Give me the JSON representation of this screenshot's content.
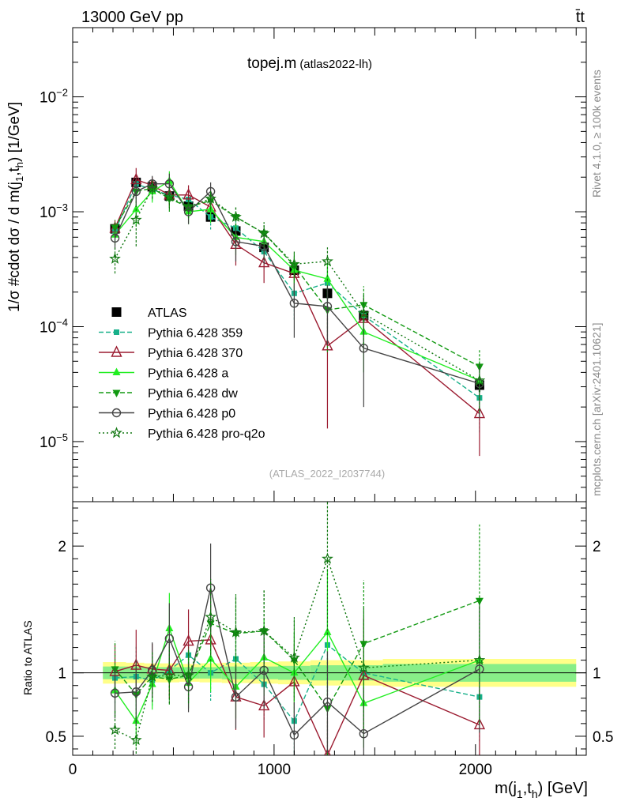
{
  "header": {
    "left": "13000 GeV pp",
    "right": "t̄t"
  },
  "plot_title": {
    "main": "topej.m",
    "sub": "(atlas2022-lh)"
  },
  "side_label_top": "Rivet 4.1.0, ≥ 100k events",
  "side_label_bottom": "mcplots.cern.ch [arXiv:2401.10621]",
  "watermark": "(ATLAS_2022_I2037744)",
  "colors": {
    "atlas": "#000000",
    "p359": "#18b08a",
    "p370": "#9b1b30",
    "pa": "#22ee22",
    "pdw": "#119911",
    "pp0": "#444444",
    "pq2o": "#117711",
    "band_outer": "#ffff88",
    "band_inner": "#88ee88"
  },
  "chart_data": [
    {
      "type": "scatter",
      "panel": "main",
      "ylabel": "1/σ #cdot dσ / d m(j1,th) [1/GeV]",
      "yscale": "log",
      "xlim": [
        0,
        2550
      ],
      "ylim": [
        3e-06,
        0.04
      ],
      "yticks": [
        {
          "v": 1e-05,
          "base": "10",
          "exp": "−5"
        },
        {
          "v": 0.0001,
          "base": "10",
          "exp": "−4"
        },
        {
          "v": 0.001,
          "base": "10",
          "exp": "−3"
        },
        {
          "v": 0.01,
          "base": "10",
          "exp": "−2"
        }
      ],
      "x": [
        210,
        315,
        395,
        480,
        575,
        685,
        810,
        950,
        1100,
        1265,
        1445,
        2020
      ],
      "series": [
        {
          "name": "ATLAS",
          "style": "data",
          "color": "#000000",
          "values": [
            0.00071,
            0.0018,
            0.00165,
            0.00137,
            0.00112,
            0.0009,
            0.00068,
            0.00049,
            0.00031,
            0.000195,
            0.000125,
            3.1e-05
          ],
          "errs": [
            6e-05,
            0.00014,
            0.00012,
            0.0001,
            8e-05,
            7e-05,
            5e-05,
            4e-05,
            2.5e-05,
            2e-05,
            1.5e-05,
            4e-06
          ]
        },
        {
          "name": "Pythia 6.428 359",
          "color": "#18b08a",
          "dash": "6,3",
          "marker": "square",
          "values": [
            0.00068,
            0.00175,
            0.00155,
            0.0014,
            0.00128,
            0.0009,
            0.00072,
            0.00045,
            0.000195,
            0.00024,
            0.000125,
            2.4e-05
          ],
          "errs": [
            0.00012,
            0.0004,
            0.0003,
            0.00025,
            0.00022,
            0.0002,
            0.00018,
            0.00013,
            8e-05,
            9e-05,
            6e-05,
            1.2e-05
          ]
        },
        {
          "name": "Pythia 6.428 370",
          "color": "#9b1b30",
          "dash": "",
          "marker": "triangle-open",
          "values": [
            0.00072,
            0.0019,
            0.0017,
            0.0014,
            0.0014,
            0.0011,
            0.00052,
            0.00036,
            0.00029,
            6.8e-05,
            0.000118,
            1.75e-05
          ],
          "errs": [
            0.00012,
            0.0005,
            0.0003,
            0.0003,
            0.0003,
            0.00025,
            0.00018,
            0.00012,
            0.0001,
            5.5e-05,
            6e-05,
            1e-05
          ]
        },
        {
          "name": "Pythia 6.428 a",
          "color": "#22ee22",
          "dash": "",
          "marker": "triangle",
          "values": [
            0.00063,
            0.00105,
            0.0015,
            0.00185,
            0.001,
            0.00105,
            0.0006,
            0.00055,
            0.00031,
            0.00026,
            9e-05,
            3.4e-05
          ],
          "errs": [
            0.00012,
            0.0003,
            0.0003,
            0.0004,
            0.00022,
            0.00025,
            0.00018,
            0.00016,
            0.0001,
            0.0001,
            5e-05,
            1.6e-05
          ]
        },
        {
          "name": "Pythia 6.428 dw",
          "color": "#119911",
          "dash": "6,3",
          "marker": "triangle-down",
          "values": [
            0.00073,
            0.0015,
            0.0016,
            0.0013,
            0.0011,
            0.00125,
            0.0009,
            0.00065,
            0.00034,
            0.00014,
            0.000155,
            4.5e-05
          ],
          "errs": [
            0.00012,
            0.0004,
            0.0003,
            0.0003,
            0.00022,
            0.00025,
            0.0002,
            0.00016,
            0.0001,
            8e-05,
            7e-05,
            1.8e-05
          ]
        },
        {
          "name": "Pythia 6.428 p0",
          "color": "#444444",
          "dash": "",
          "marker": "circle-open",
          "values": [
            0.00059,
            0.0015,
            0.00175,
            0.00175,
            0.001,
            0.0015,
            0.00055,
            0.0005,
            0.00016,
            0.00015,
            6.5e-05,
            3.2e-05
          ],
          "errs": [
            0.00012,
            0.0004,
            0.0003,
            0.0004,
            0.00022,
            0.0003,
            0.00018,
            0.00015,
            8e-05,
            8e-05,
            4.5e-05,
            1.6e-05
          ]
        },
        {
          "name": "Pythia 6.428 pro-q2o",
          "color": "#117711",
          "dash": "2,3",
          "marker": "star",
          "values": [
            0.00039,
            0.00085,
            0.0016,
            0.00135,
            0.0011,
            0.0013,
            0.0009,
            0.00065,
            0.00035,
            0.00037,
            0.00013,
            3.4e-05
          ],
          "errs": [
            0.0001,
            0.00035,
            0.0003,
            0.0003,
            0.00022,
            0.00025,
            0.0002,
            0.00016,
            0.0001,
            0.00012,
            6e-05,
            1.6e-05
          ]
        }
      ]
    },
    {
      "type": "scatter",
      "panel": "ratio",
      "ylabel": "Ratio to ATLAS",
      "xlabel": "m(j1,th) [GeV]",
      "xlim": [
        0,
        2550
      ],
      "ylim": [
        0.35,
        2.35
      ],
      "yticks": [
        0.5,
        1,
        2
      ],
      "xticks": [
        0,
        1000,
        2000
      ],
      "band_bins": [
        [
          150,
          265,
          0.085,
          0.05
        ],
        [
          265,
          355,
          0.08,
          0.05
        ],
        [
          355,
          435,
          0.075,
          0.045
        ],
        [
          435,
          530,
          0.075,
          0.045
        ],
        [
          530,
          630,
          0.07,
          0.045
        ],
        [
          630,
          740,
          0.075,
          0.045
        ],
        [
          740,
          880,
          0.08,
          0.05
        ],
        [
          880,
          1020,
          0.085,
          0.05
        ],
        [
          1020,
          1180,
          0.09,
          0.055
        ],
        [
          1180,
          1350,
          0.1,
          0.06
        ],
        [
          1350,
          1540,
          0.1,
          0.06
        ],
        [
          1540,
          2500,
          0.11,
          0.07
        ]
      ],
      "x": [
        210,
        315,
        395,
        480,
        575,
        685,
        810,
        950,
        1100,
        1265,
        1445,
        2020
      ],
      "series": [
        {
          "name": "Pythia 6.428 359",
          "color": "#18b08a",
          "dash": "6,3",
          "marker": "square",
          "values": [
            0.96,
            0.97,
            0.94,
            1.02,
            1.14,
            1.0,
            1.11,
            0.91,
            0.62,
            1.22,
            1.0,
            0.81
          ],
          "errs": [
            0.2,
            0.25,
            0.2,
            0.2,
            0.2,
            0.22,
            0.25,
            0.28,
            0.28,
            0.4,
            0.4,
            0.35
          ]
        },
        {
          "name": "Pythia 6.428 370",
          "color": "#9b1b30",
          "dash": "",
          "marker": "triangle-open",
          "values": [
            1.01,
            1.06,
            1.03,
            1.02,
            1.25,
            1.26,
            0.81,
            0.74,
            0.93,
            0.35,
            0.98,
            0.59
          ],
          "errs": [
            0.22,
            0.28,
            0.2,
            0.22,
            0.25,
            0.28,
            0.26,
            0.25,
            0.3,
            0.28,
            0.45,
            0.3
          ]
        },
        {
          "name": "Pythia 6.428 a",
          "color": "#22ee22",
          "dash": "",
          "marker": "triangle",
          "values": [
            0.86,
            0.62,
            0.91,
            1.35,
            0.92,
            1.11,
            0.89,
            1.12,
            1.0,
            1.32,
            0.76,
            1.1
          ],
          "errs": [
            0.2,
            0.2,
            0.2,
            0.28,
            0.2,
            0.26,
            0.25,
            0.3,
            0.32,
            0.5,
            0.35,
            0.5
          ]
        },
        {
          "name": "Pythia 6.428 dw",
          "color": "#119911",
          "dash": "6,3",
          "marker": "triangle-down",
          "values": [
            1.03,
            0.83,
            0.97,
            0.95,
            0.98,
            1.39,
            1.31,
            1.33,
            1.1,
            0.72,
            1.23,
            1.57
          ],
          "errs": [
            0.22,
            0.25,
            0.2,
            0.2,
            0.2,
            0.3,
            0.3,
            0.32,
            0.32,
            0.4,
            0.5,
            0.6
          ]
        },
        {
          "name": "Pythia 6.428 p0",
          "color": "#444444",
          "dash": "",
          "marker": "circle-open",
          "values": [
            0.84,
            0.85,
            1.02,
            1.27,
            0.89,
            1.67,
            0.81,
            1.02,
            0.51,
            0.77,
            0.52,
            1.03
          ],
          "errs": [
            0.2,
            0.25,
            0.22,
            0.28,
            0.2,
            0.35,
            0.25,
            0.3,
            0.26,
            0.4,
            0.36,
            0.5
          ]
        },
        {
          "name": "Pythia 6.428 pro-q2o",
          "color": "#117711",
          "dash": "2,3",
          "marker": "star",
          "values": [
            0.55,
            0.47,
            0.97,
            0.98,
            0.98,
            1.44,
            1.32,
            1.33,
            1.12,
            1.9,
            1.04,
            1.1
          ],
          "errs": [
            0.15,
            0.2,
            0.2,
            0.22,
            0.22,
            0.3,
            0.3,
            0.32,
            0.32,
            0.6,
            0.48,
            0.5
          ]
        }
      ]
    }
  ]
}
